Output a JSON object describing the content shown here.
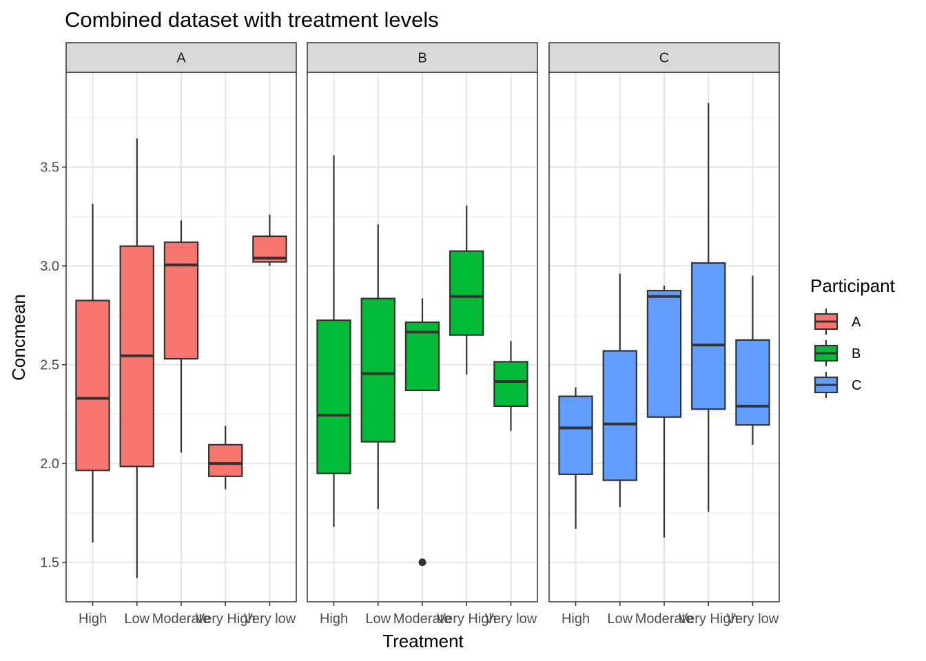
{
  "chart_data": {
    "type": "boxplot",
    "title": "Combined dataset with treatment levels",
    "xlabel": "Treatment",
    "ylabel": "Concmean",
    "ylim": [
      1.3,
      3.98
    ],
    "yticks": [
      1.5,
      2.0,
      2.5,
      3.0,
      3.5
    ],
    "ytick_labels": [
      "1.5",
      "2.0",
      "2.5",
      "3.0",
      "3.5"
    ],
    "categories": [
      "High",
      "Low",
      "Moderate",
      "Very High",
      "Very low"
    ],
    "legend": {
      "title": "Participant",
      "position": "right"
    },
    "facets": [
      {
        "label": "A",
        "color": "#F8766D",
        "boxes": [
          {
            "category": "High",
            "lower": 1.6,
            "q1": 1.965,
            "median": 2.33,
            "q3": 2.825,
            "upper": 3.315,
            "outliers": []
          },
          {
            "category": "Low",
            "lower": 1.42,
            "q1": 1.985,
            "median": 2.545,
            "q3": 3.1,
            "upper": 3.645,
            "outliers": []
          },
          {
            "category": "Moderate",
            "lower": 2.055,
            "q1": 2.53,
            "median": 3.005,
            "q3": 3.12,
            "upper": 3.23,
            "outliers": []
          },
          {
            "category": "Very High",
            "lower": 1.87,
            "q1": 1.935,
            "median": 2.0,
            "q3": 2.095,
            "upper": 2.19,
            "outliers": []
          },
          {
            "category": "Very low",
            "lower": 3.0,
            "q1": 3.02,
            "median": 3.04,
            "q3": 3.15,
            "upper": 3.26,
            "outliers": []
          }
        ]
      },
      {
        "label": "B",
        "color": "#00BA38",
        "boxes": [
          {
            "category": "High",
            "lower": 1.68,
            "q1": 1.95,
            "median": 2.245,
            "q3": 2.725,
            "upper": 3.56,
            "outliers": []
          },
          {
            "category": "Low",
            "lower": 1.77,
            "q1": 2.11,
            "median": 2.455,
            "q3": 2.835,
            "upper": 3.21,
            "outliers": []
          },
          {
            "category": "Moderate",
            "lower": 2.37,
            "q1": 2.37,
            "median": 2.665,
            "q3": 2.715,
            "upper": 2.835,
            "outliers": [
              1.5
            ]
          },
          {
            "category": "Very High",
            "lower": 2.45,
            "q1": 2.65,
            "median": 2.845,
            "q3": 3.075,
            "upper": 3.305,
            "outliers": []
          },
          {
            "category": "Very low",
            "lower": 2.165,
            "q1": 2.29,
            "median": 2.415,
            "q3": 2.515,
            "upper": 2.62,
            "outliers": []
          }
        ]
      },
      {
        "label": "C",
        "color": "#619CFF",
        "boxes": [
          {
            "category": "High",
            "lower": 1.67,
            "q1": 1.945,
            "median": 2.18,
            "q3": 2.34,
            "upper": 2.385,
            "outliers": []
          },
          {
            "category": "Low",
            "lower": 1.78,
            "q1": 1.915,
            "median": 2.2,
            "q3": 2.57,
            "upper": 2.96,
            "outliers": []
          },
          {
            "category": "Moderate",
            "lower": 1.625,
            "q1": 2.235,
            "median": 2.845,
            "q3": 2.875,
            "upper": 2.9,
            "outliers": []
          },
          {
            "category": "Very High",
            "lower": 1.755,
            "q1": 2.275,
            "median": 2.6,
            "q3": 3.015,
            "upper": 3.825,
            "outliers": []
          },
          {
            "category": "Very low",
            "lower": 2.095,
            "q1": 2.195,
            "median": 2.29,
            "q3": 2.625,
            "upper": 2.95,
            "outliers": []
          }
        ]
      }
    ]
  }
}
